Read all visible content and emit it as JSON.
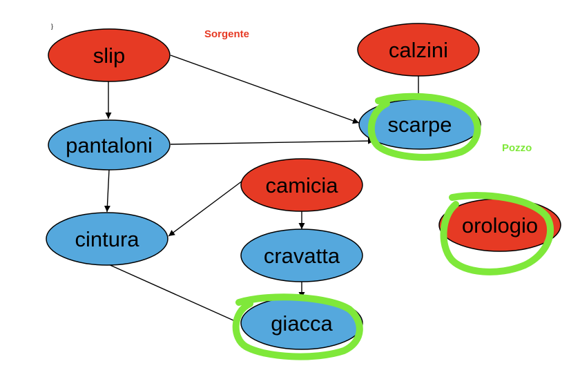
{
  "legend": {
    "source": "Sorgente",
    "sink": "Pozzo"
  },
  "corner_mark": "}",
  "colors": {
    "source": "#e63a24",
    "other": "#55a8dd",
    "highlight": "#7fe83a",
    "stroke": "#000000",
    "legend_source": "#e63a24",
    "legend_sink": "#7fe83a"
  },
  "nodes": [
    {
      "id": "slip",
      "label": "slip",
      "role": "source"
    },
    {
      "id": "calzini",
      "label": "calzini",
      "role": "source"
    },
    {
      "id": "scarpe",
      "label": "scarpe",
      "role": "sink"
    },
    {
      "id": "pantaloni",
      "label": "pantaloni",
      "role": "internal"
    },
    {
      "id": "camicia",
      "label": "camicia",
      "role": "source"
    },
    {
      "id": "cintura",
      "label": "cintura",
      "role": "internal"
    },
    {
      "id": "cravatta",
      "label": "cravatta",
      "role": "internal"
    },
    {
      "id": "orologio",
      "label": "orologio",
      "role": "source-sink"
    },
    {
      "id": "giacca",
      "label": "giacca",
      "role": "sink"
    }
  ],
  "edges": [
    {
      "from": "slip",
      "to": "pantaloni"
    },
    {
      "from": "slip",
      "to": "scarpe"
    },
    {
      "from": "calzini",
      "to": "scarpe"
    },
    {
      "from": "pantaloni",
      "to": "scarpe"
    },
    {
      "from": "pantaloni",
      "to": "cintura"
    },
    {
      "from": "camicia",
      "to": "cintura"
    },
    {
      "from": "camicia",
      "to": "cravatta"
    },
    {
      "from": "cravatta",
      "to": "giacca"
    },
    {
      "from": "cintura",
      "to": "giacca"
    }
  ]
}
